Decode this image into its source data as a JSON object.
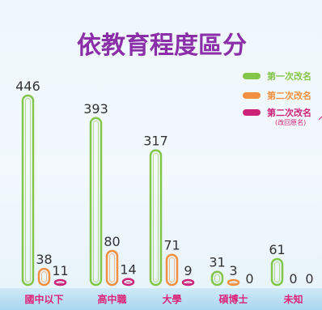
{
  "chart_data": {
    "type": "bar",
    "title": "依教育程度區分",
    "categories": [
      "國中以下",
      "高中職",
      "大學",
      "碩博士",
      "未知"
    ],
    "series": [
      {
        "name": "第一次改名",
        "color": "#84c64a",
        "values": [
          446,
          393,
          317,
          31,
          61
        ]
      },
      {
        "name": "第二次改名",
        "color": "#f09040",
        "values": [
          38,
          80,
          71,
          3,
          0
        ]
      },
      {
        "name": "第二次改名",
        "sublabel": "(改回原名)",
        "color": "#cc2277",
        "values": [
          11,
          14,
          9,
          0,
          0
        ]
      }
    ],
    "ylim": [
      0,
      446
    ],
    "grid": false,
    "legend_position": "top-right"
  },
  "colors": {
    "title": "#8a2fa8",
    "category_label": "#dd2277",
    "category_band": "#b9dff3",
    "value_label": "#333333"
  }
}
